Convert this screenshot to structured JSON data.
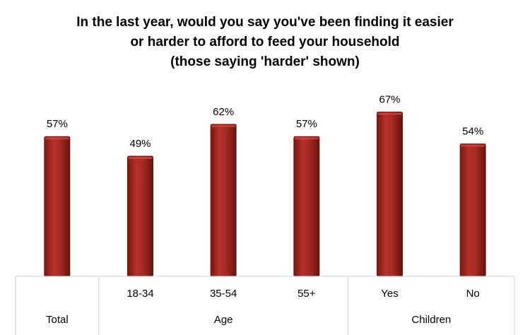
{
  "chart_data": {
    "type": "bar",
    "title_lines": [
      "In the last year, would you say you've been finding it easier",
      "or harder to afford to feed your household",
      "(those saying 'harder' shown)"
    ],
    "categories": [
      "",
      "18-34",
      "35-54",
      "55+",
      "Yes",
      "No"
    ],
    "groups": [
      {
        "label": "Total",
        "span": 1
      },
      {
        "label": "Age",
        "span": 3
      },
      {
        "label": "Children",
        "span": 2
      }
    ],
    "values": [
      57,
      49,
      62,
      57,
      67,
      54
    ],
    "value_labels": [
      "57%",
      "49%",
      "62%",
      "57%",
      "67%",
      "54%"
    ],
    "ylim": [
      0,
      100
    ],
    "grid": false,
    "legend": "none",
    "colors": {
      "bar": "#a52a24",
      "bar_dark": "#6e1410",
      "bar_light": "#c8473f",
      "axis": "#d0d0d0"
    }
  }
}
